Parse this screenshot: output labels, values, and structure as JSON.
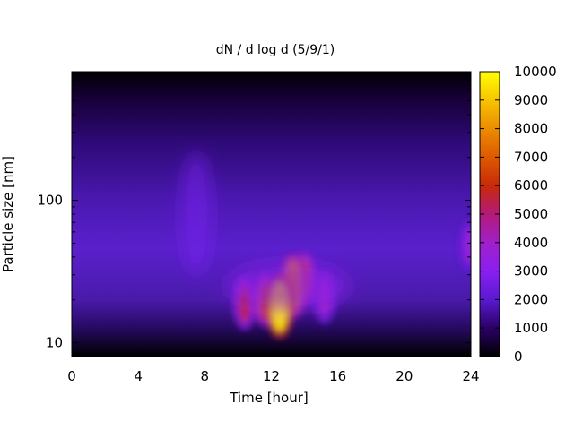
{
  "chart_data": {
    "type": "heatmap",
    "title": "dN / d log d (5/9/1)",
    "xlabel": "Time [hour]",
    "ylabel": "Particle size [nm]",
    "x_range": [
      0,
      24
    ],
    "x_ticks": [
      0,
      4,
      8,
      12,
      16,
      20,
      24
    ],
    "y_scale": "log",
    "y_range_nm": [
      8,
      800
    ],
    "y_tick_labels": [
      "10",
      "100"
    ],
    "y_tick_values": [
      10,
      100
    ],
    "colorbar": {
      "range": [
        0,
        10000
      ],
      "ticks": [
        0,
        1000,
        2000,
        3000,
        4000,
        5000,
        6000,
        7000,
        8000,
        9000,
        10000
      ],
      "colormap": "gnuplot-hot (black-purple-red-orange-yellow)"
    },
    "features": [
      {
        "time_h": 12.5,
        "size_nm": 18,
        "value": 9500
      },
      {
        "time_h": 13.3,
        "size_nm": 25,
        "value": 7500
      },
      {
        "time_h": 14.0,
        "size_nm": 28,
        "value": 6500
      },
      {
        "time_h": 11.6,
        "size_nm": 20,
        "value": 6500
      },
      {
        "time_h": 10.4,
        "size_nm": 19,
        "value": 5500
      },
      {
        "time_h": 15.2,
        "size_nm": 21,
        "value": 4000
      },
      {
        "time_h": 23.9,
        "size_nm": 48,
        "value": 3500
      }
    ],
    "grid": false,
    "legend": "colorbar-right"
  }
}
